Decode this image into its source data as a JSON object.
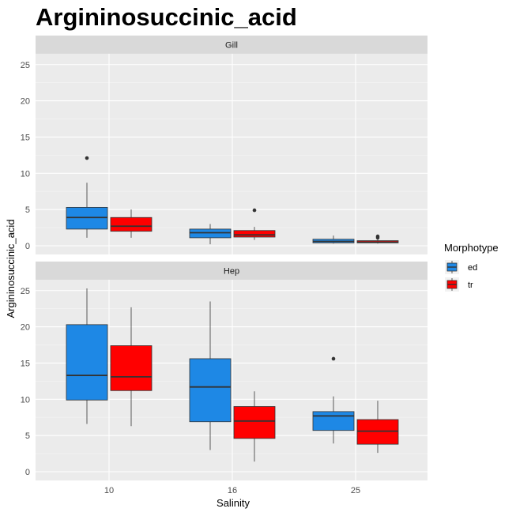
{
  "chart_data": {
    "type": "box",
    "title": "Argininosuccinic_acid",
    "xlabel": "Salinity",
    "ylabel": "Argininosuccinic_acid",
    "categories": [
      "10",
      "16",
      "25"
    ],
    "ylim": [
      -1.2,
      26.5
    ],
    "yticks": [
      0,
      5,
      10,
      15,
      20,
      25
    ],
    "grid": true,
    "legend": {
      "title": "Morphotype",
      "position": "right",
      "entries": [
        {
          "name": "ed",
          "color": "#1E88E5"
        },
        {
          "name": "tr",
          "color": "#FF0000"
        }
      ]
    },
    "panels": [
      {
        "label": "Gill",
        "series": [
          {
            "name": "ed",
            "color": "#1E88E5",
            "boxes": [
              {
                "category": "10",
                "min": 1.1,
                "q1": 2.3,
                "median": 3.9,
                "q3": 5.3,
                "max": 8.7,
                "outliers": [
                  12.1
                ]
              },
              {
                "category": "16",
                "min": 0.2,
                "q1": 1.1,
                "median": 1.8,
                "q3": 2.3,
                "max": 3.0,
                "outliers": []
              },
              {
                "category": "25",
                "min": 0.3,
                "q1": 0.4,
                "median": 0.6,
                "q3": 0.9,
                "max": 1.4,
                "outliers": []
              }
            ]
          },
          {
            "name": "tr",
            "color": "#FF0000",
            "boxes": [
              {
                "category": "10",
                "min": 1.1,
                "q1": 2.0,
                "median": 2.7,
                "q3": 3.9,
                "max": 5.0,
                "outliers": []
              },
              {
                "category": "16",
                "min": 0.8,
                "q1": 1.2,
                "median": 1.5,
                "q3": 2.1,
                "max": 2.6,
                "outliers": [
                  4.9
                ]
              },
              {
                "category": "25",
                "min": 0.3,
                "q1": 0.4,
                "median": 0.5,
                "q3": 0.7,
                "max": 0.9,
                "outliers": [
                  1.1,
                  1.3
                ]
              }
            ]
          }
        ]
      },
      {
        "label": "Hep",
        "series": [
          {
            "name": "ed",
            "color": "#1E88E5",
            "boxes": [
              {
                "category": "10",
                "min": 6.6,
                "q1": 9.9,
                "median": 13.3,
                "q3": 20.3,
                "max": 25.3,
                "outliers": []
              },
              {
                "category": "16",
                "min": 3.0,
                "q1": 6.9,
                "median": 11.7,
                "q3": 15.6,
                "max": 23.5,
                "outliers": []
              },
              {
                "category": "25",
                "min": 3.9,
                "q1": 5.7,
                "median": 7.7,
                "q3": 8.3,
                "max": 10.4,
                "outliers": [
                  15.6
                ]
              }
            ]
          },
          {
            "name": "tr",
            "color": "#FF0000",
            "boxes": [
              {
                "category": "10",
                "min": 6.3,
                "q1": 11.2,
                "median": 13.1,
                "q3": 17.4,
                "max": 22.7,
                "outliers": []
              },
              {
                "category": "16",
                "min": 1.4,
                "q1": 4.6,
                "median": 7.0,
                "q3": 9.0,
                "max": 11.1,
                "outliers": []
              },
              {
                "category": "25",
                "min": 2.6,
                "q1": 3.8,
                "median": 5.6,
                "q3": 7.2,
                "max": 9.8,
                "outliers": []
              }
            ]
          }
        ]
      }
    ]
  }
}
